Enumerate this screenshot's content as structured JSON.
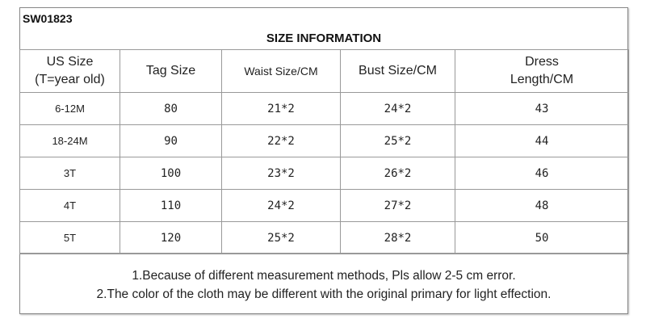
{
  "code": "SW01823",
  "title": "SIZE INFORMATION",
  "headers": [
    "US Size\n(T=year old)",
    "Tag Size",
    "Waist Size/CM",
    "Bust Size/CM",
    "Dress\nLength/CM"
  ],
  "header_lines": {
    "us1": "US Size",
    "us2": "(T=year old)",
    "dress1": "Dress",
    "dress2": "Length/CM"
  },
  "rows": [
    [
      "6-12M",
      "80",
      "21*2",
      "24*2",
      "43"
    ],
    [
      "18-24M",
      "90",
      "22*2",
      "25*2",
      "44"
    ],
    [
      "3T",
      "100",
      "23*2",
      "26*2",
      "46"
    ],
    [
      "4T",
      "110",
      "24*2",
      "27*2",
      "48"
    ],
    [
      "5T",
      "120",
      "25*2",
      "28*2",
      "50"
    ]
  ],
  "notes": [
    "1.Because of different measurement methods, Pls allow 2-5 cm error.",
    "2.The color of the cloth may be different with the original primary for light effection."
  ]
}
